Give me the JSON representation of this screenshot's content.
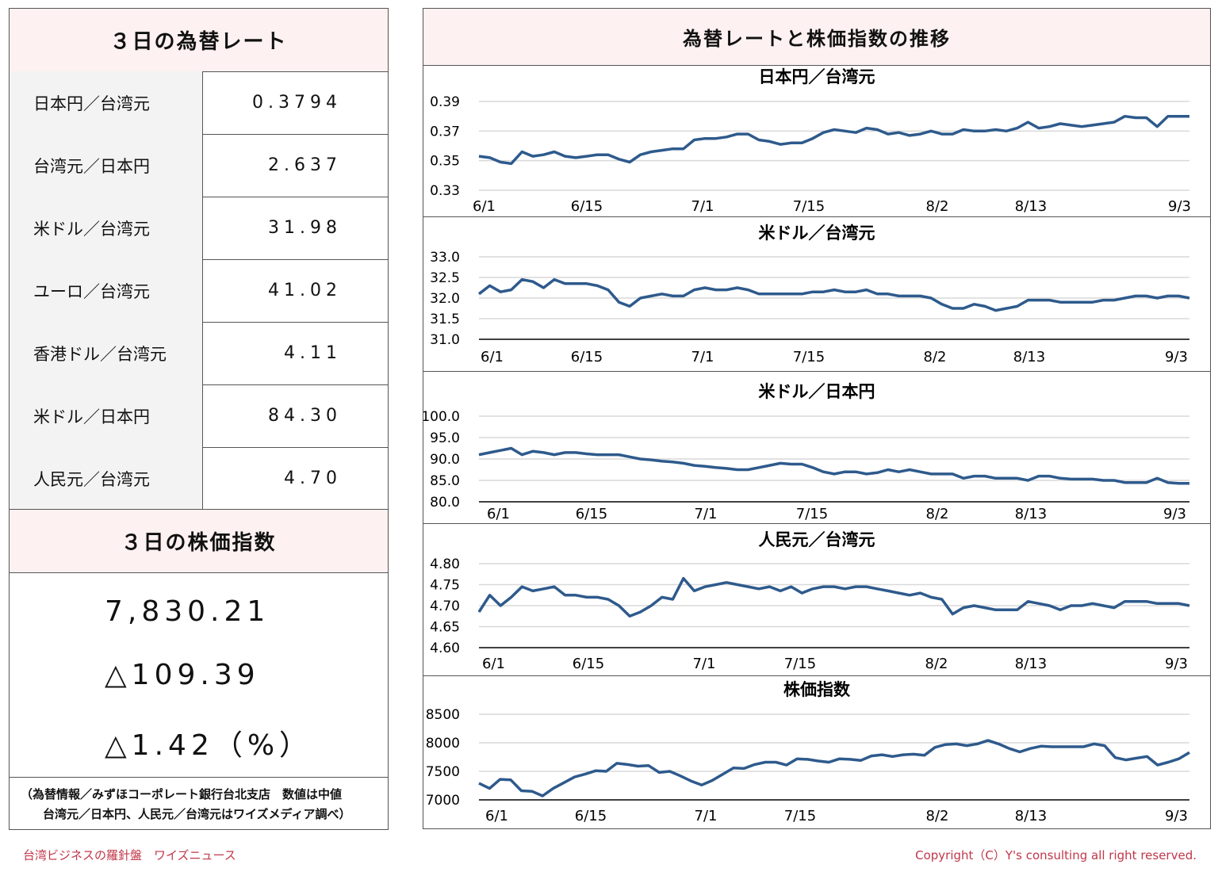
{
  "left": {
    "rates_title": "３日の為替レート",
    "rates": [
      {
        "label": "日本円／台湾元",
        "value": "0.3794"
      },
      {
        "label": "台湾元／日本円",
        "value": "2.637"
      },
      {
        "label": "米ドル／台湾元",
        "value": "31.98"
      },
      {
        "label": "ユーロ／台湾元",
        "value": "41.02"
      },
      {
        "label": "香港ドル／台湾元",
        "value": "4.11"
      },
      {
        "label": "米ドル／日本円",
        "value": "84.30"
      },
      {
        "label": "人民元／台湾元",
        "value": "4.70"
      }
    ],
    "stock_title": "３日の株価指数",
    "stock_index": "7,830.21",
    "stock_change": "△109.39",
    "stock_change_pct": "△1.42（%）",
    "note_line1": "（為替情報／みずほコーポレート銀行台北支店　数値は中値",
    "note_line2": "台湾元／日本円、人民元／台湾元はワイズメディア調べ）"
  },
  "right": {
    "title": "為替レートと株価指数の推移"
  },
  "footer": {
    "left": "台湾ビジネスの羅針盤　ワイズニュース",
    "right": "Copyright（C）Y's consulting all right reserved."
  },
  "colors": {
    "line": "#2e5a8c",
    "header_bg": "#fdf1f1",
    "label_bg": "#f3f3f3",
    "footer": "#c0374a"
  },
  "chart_data": [
    {
      "type": "line",
      "title": "日本円／台湾元",
      "x_ticks": [
        "6/1",
        "6/15",
        "7/1",
        "7/15",
        "8/2",
        "8/13",
        "9/3"
      ],
      "y_ticks": [
        "0.39",
        "0.37",
        "0.35",
        "0.33"
      ],
      "ylim": [
        0.33,
        0.39
      ],
      "bottom_axis_line": false,
      "values": [
        0.353,
        0.352,
        0.349,
        0.348,
        0.356,
        0.353,
        0.354,
        0.356,
        0.353,
        0.352,
        0.353,
        0.354,
        0.354,
        0.351,
        0.349,
        0.354,
        0.356,
        0.357,
        0.358,
        0.358,
        0.364,
        0.365,
        0.365,
        0.366,
        0.368,
        0.368,
        0.364,
        0.363,
        0.361,
        0.362,
        0.362,
        0.365,
        0.369,
        0.371,
        0.37,
        0.369,
        0.372,
        0.371,
        0.368,
        0.369,
        0.367,
        0.368,
        0.37,
        0.368,
        0.368,
        0.371,
        0.37,
        0.37,
        0.371,
        0.37,
        0.372,
        0.376,
        0.372,
        0.373,
        0.375,
        0.374,
        0.373,
        0.374,
        0.375,
        0.376,
        0.38,
        0.379,
        0.379,
        0.373,
        0.38,
        0.38,
        0.38
      ]
    },
    {
      "type": "line",
      "title": "米ドル／台湾元",
      "x_ticks": [
        "6/1",
        "6/15",
        "7/1",
        "7/15",
        "8/2",
        "8/13",
        "9/3"
      ],
      "y_ticks": [
        "33.0",
        "32.5",
        "32.0",
        "31.5",
        "31.0"
      ],
      "ylim": [
        31.0,
        33.0
      ],
      "bottom_axis_line": true,
      "values": [
        32.1,
        32.3,
        32.15,
        32.2,
        32.45,
        32.4,
        32.25,
        32.45,
        32.35,
        32.35,
        32.35,
        32.3,
        32.2,
        31.9,
        31.8,
        32.0,
        32.05,
        32.1,
        32.05,
        32.05,
        32.2,
        32.25,
        32.2,
        32.2,
        32.25,
        32.2,
        32.1,
        32.1,
        32.1,
        32.1,
        32.1,
        32.15,
        32.15,
        32.2,
        32.15,
        32.15,
        32.2,
        32.1,
        32.1,
        32.05,
        32.05,
        32.05,
        32.0,
        31.85,
        31.75,
        31.75,
        31.85,
        31.8,
        31.7,
        31.75,
        31.8,
        31.95,
        31.95,
        31.95,
        31.9,
        31.9,
        31.9,
        31.9,
        31.95,
        31.95,
        32.0,
        32.05,
        32.05,
        32.0,
        32.05,
        32.05,
        32.0
      ]
    },
    {
      "type": "line",
      "title": "米ドル／日本円",
      "x_ticks": [
        "6/1",
        "6/15",
        "7/1",
        "7/15",
        "8/2",
        "8/13",
        "9/3"
      ],
      "y_ticks": [
        "100.0",
        "95.0",
        "90.0",
        "85.0",
        "80.0"
      ],
      "ylim": [
        80.0,
        100.0
      ],
      "bottom_axis_line": true,
      "values": [
        91.0,
        91.5,
        92.0,
        92.5,
        91.0,
        91.8,
        91.5,
        91.0,
        91.5,
        91.5,
        91.2,
        91.0,
        91.0,
        91.0,
        90.5,
        90.0,
        89.8,
        89.5,
        89.3,
        89.0,
        88.5,
        88.3,
        88.0,
        87.8,
        87.5,
        87.5,
        88.0,
        88.5,
        89.0,
        88.8,
        88.8,
        88.0,
        87.0,
        86.5,
        87.0,
        87.0,
        86.5,
        86.8,
        87.5,
        87.0,
        87.5,
        87.0,
        86.5,
        86.5,
        86.5,
        85.5,
        86.0,
        86.0,
        85.5,
        85.5,
        85.5,
        85.0,
        86.0,
        86.0,
        85.5,
        85.3,
        85.3,
        85.3,
        85.0,
        85.0,
        84.5,
        84.5,
        84.5,
        85.5,
        84.5,
        84.3,
        84.3
      ]
    },
    {
      "type": "line",
      "title": "人民元／台湾元",
      "x_ticks": [
        "6/1",
        "6/15",
        "7/1",
        "7/15",
        "8/2",
        "8/13",
        "9/3"
      ],
      "y_ticks": [
        "4.80",
        "4.75",
        "4.70",
        "4.65",
        "4.60"
      ],
      "ylim": [
        4.6,
        4.8
      ],
      "bottom_axis_line": true,
      "values": [
        4.685,
        4.725,
        4.7,
        4.72,
        4.745,
        4.735,
        4.74,
        4.745,
        4.725,
        4.725,
        4.72,
        4.72,
        4.715,
        4.7,
        4.675,
        4.685,
        4.7,
        4.72,
        4.715,
        4.765,
        4.735,
        4.745,
        4.75,
        4.755,
        4.75,
        4.745,
        4.74,
        4.745,
        4.735,
        4.745,
        4.73,
        4.74,
        4.745,
        4.745,
        4.74,
        4.745,
        4.745,
        4.74,
        4.735,
        4.73,
        4.725,
        4.73,
        4.72,
        4.715,
        4.68,
        4.695,
        4.7,
        4.695,
        4.69,
        4.69,
        4.69,
        4.71,
        4.705,
        4.7,
        4.69,
        4.7,
        4.7,
        4.705,
        4.7,
        4.695,
        4.71,
        4.71,
        4.71,
        4.705,
        4.705,
        4.705,
        4.7
      ]
    },
    {
      "type": "line",
      "title": "株価指数",
      "x_ticks": [
        "6/1",
        "6/15",
        "7/1",
        "7/15",
        "8/2",
        "8/13",
        "9/3"
      ],
      "y_ticks": [
        "8500",
        "8000",
        "7500",
        "7000"
      ],
      "ylim": [
        7000,
        8500
      ],
      "bottom_axis_line": true,
      "values": [
        7290,
        7200,
        7360,
        7350,
        7160,
        7150,
        7070,
        7200,
        7300,
        7400,
        7450,
        7510,
        7500,
        7640,
        7620,
        7590,
        7600,
        7480,
        7500,
        7420,
        7330,
        7260,
        7340,
        7450,
        7560,
        7550,
        7620,
        7660,
        7660,
        7610,
        7720,
        7710,
        7680,
        7660,
        7720,
        7710,
        7690,
        7770,
        7790,
        7760,
        7790,
        7800,
        7780,
        7920,
        7970,
        7980,
        7950,
        7980,
        8040,
        7980,
        7900,
        7840,
        7900,
        7940,
        7930,
        7930,
        7930,
        7930,
        7980,
        7950,
        7740,
        7700,
        7730,
        7760,
        7610,
        7660,
        7720,
        7830
      ]
    }
  ]
}
